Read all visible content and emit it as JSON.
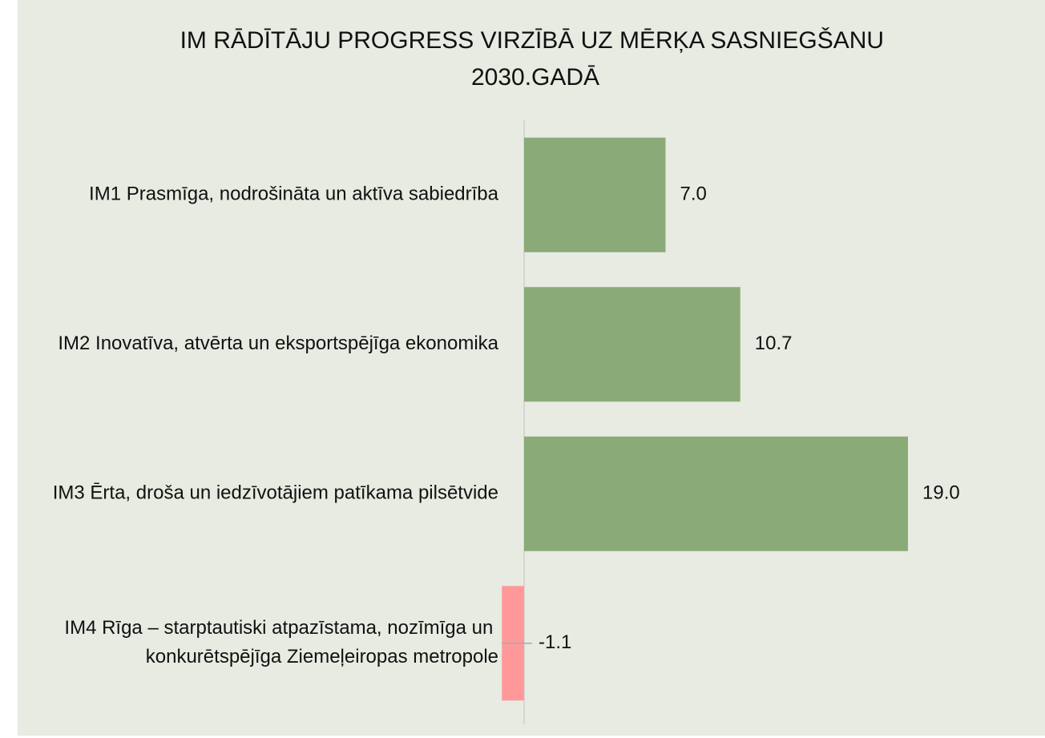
{
  "chart_data": {
    "type": "barh",
    "title": "IM RĀDĪTĀJU PROGRESS VIRZĪBĀ UZ MĒRĶA SASNIEGŠANU 2030.GADĀ",
    "categories": [
      "IM1 Prasmīga, nodrošināta un aktīva sabiedrība",
      "IM2 Inovatīva, atvērta un eksportspējīga ekonomika",
      "IM3 Ērta, droša un iedzīvotājiem patīkama pilsētvide",
      "IM4 Rīga – starptautiski atpazīstama, nozīmīga un konkurētspējīga Ziemeļeiropas metropole"
    ],
    "values": [
      7.0,
      10.7,
      19.0,
      -1.1
    ],
    "value_labels": [
      "7.0",
      "10.7",
      "19.0",
      "-1.1"
    ],
    "colors": [
      "#8aab78",
      "#8aab78",
      "#8aab78",
      "#ff9999"
    ]
  }
}
